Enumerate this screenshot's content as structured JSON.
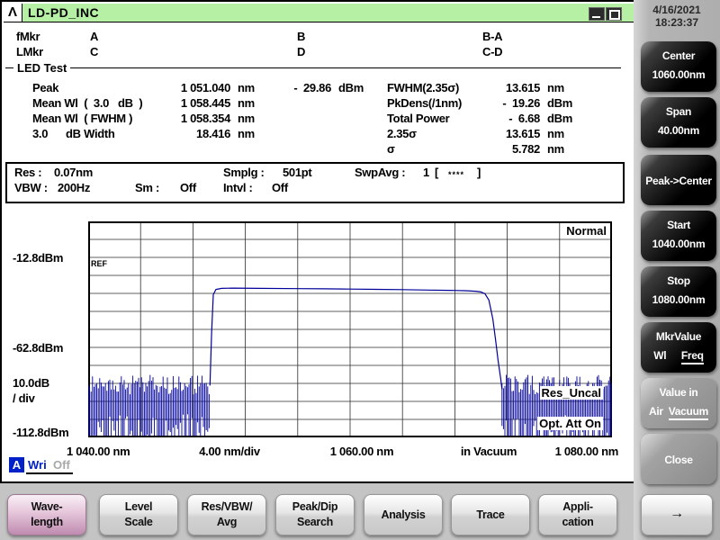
{
  "colors": {
    "titlebar_green": "#b5f0a5",
    "trace_blue": "#000099",
    "selected_key_pink": "#bf8bb0",
    "wri_blue": "#0020c8"
  },
  "window": {
    "title": "LD-PD_INC",
    "logo_glyph": "Λ",
    "date": "4/16/2021",
    "time": "18:23:37"
  },
  "markers": {
    "row1": {
      "label": "fMkr",
      "a": "A",
      "b": "B",
      "diff": "B-A"
    },
    "row2": {
      "label": "LMkr",
      "a": "C",
      "b": "D",
      "diff": "C-D"
    }
  },
  "led_test": {
    "title": "LED Test",
    "rows_left": [
      {
        "name": "Peak",
        "value": "1 051.040",
        "unit": "nm",
        "level": "-  29.86",
        "level_unit": "dBm"
      },
      {
        "name": "Mean Wl  (  3.0   dB  )",
        "value": "1 058.445",
        "unit": "nm"
      },
      {
        "name": "Mean Wl  ( FWHM )",
        "value": "1 058.354",
        "unit": "nm"
      },
      {
        "name": "3.0      dB Width",
        "value": "18.416",
        "unit": "nm"
      }
    ],
    "rows_right": [
      {
        "name": "FWHM(2.35σ)",
        "value": "13.615",
        "unit": "nm"
      },
      {
        "name": "PkDens(/1nm)",
        "value": "-  19.26",
        "unit": "dBm"
      },
      {
        "name": "Total Power",
        "value": "-  6.68",
        "unit": "dBm"
      },
      {
        "name": "2.35σ",
        "value": "13.615",
        "unit": "nm"
      },
      {
        "name": "σ",
        "value": "5.782",
        "unit": "nm"
      }
    ]
  },
  "sweep_settings": {
    "res_label": "Res :",
    "res": "0.07nm",
    "smplg_label": "Smplg :",
    "smplg": "501pt",
    "swpavg_label": "SwpAvg :",
    "swpavg_value": "1",
    "bracket_open": "[",
    "stars": "****",
    "bracket_close": "]",
    "vbw_label": "VBW :",
    "vbw": "200Hz",
    "sm_label": "Sm :",
    "sm": "Off",
    "intvl_label": "Intvl :",
    "intvl": "Off"
  },
  "chart_data": {
    "type": "line",
    "mode_label": "Normal",
    "ref_label": "REF",
    "status_labels": [
      "Res_Uncal",
      "Opt. Att On"
    ],
    "x_axis": {
      "start_nm": 1040.0,
      "stop_nm": 1080.0,
      "nm_per_div": 4.0,
      "divisions": 10,
      "medium": "in Vacuum",
      "tick_labels": [
        "1 040.00 nm",
        "4.00 nm/div",
        "1 060.00 nm",
        "in Vacuum",
        "1 080.00 nm"
      ]
    },
    "y_axis": {
      "ref_dbm": -12.8,
      "db_per_div": 10.0,
      "top_dbm": 7.2,
      "bottom_dbm": -112.8,
      "divisions": 12,
      "tick_labels": [
        "-12.8dBm",
        "-62.8dBm",
        "10.0dB",
        "/ div",
        "-112.8dBm"
      ]
    },
    "peak": {
      "wavelength_nm": 1051.04,
      "level_dbm": -29.86
    },
    "series": [
      {
        "name": "A",
        "color": "#000099",
        "pulse_points": [
          [
            1049.3,
            -84
          ],
          [
            1049.42,
            -55
          ],
          [
            1049.55,
            -33.5
          ],
          [
            1049.75,
            -30.6
          ],
          [
            1050.2,
            -30.0
          ],
          [
            1051.04,
            -29.86
          ],
          [
            1053.0,
            -30.0
          ],
          [
            1056.0,
            -30.15
          ],
          [
            1058.0,
            -30.25
          ],
          [
            1060.0,
            -30.4
          ],
          [
            1062.0,
            -30.55
          ],
          [
            1064.0,
            -30.7
          ],
          [
            1066.0,
            -30.95
          ],
          [
            1067.5,
            -31.1
          ],
          [
            1068.8,
            -31.3
          ],
          [
            1069.6,
            -31.6
          ],
          [
            1070.0,
            -32.0
          ],
          [
            1070.3,
            -33.0
          ],
          [
            1070.6,
            -36.5
          ],
          [
            1070.9,
            -47.0
          ],
          [
            1071.1,
            -58.0
          ],
          [
            1071.3,
            -70.0
          ],
          [
            1071.5,
            -80.0
          ],
          [
            1071.6,
            -86.0
          ]
        ],
        "noise_regions": [
          [
            1040.0,
            1049.3
          ],
          [
            1071.6,
            1080.0
          ]
        ],
        "noise_top_dbm": [
          -78,
          -89
        ],
        "noise_bottom_dbm": [
          -100,
          -126
        ],
        "noise_step_nm": 0.11,
        "seed": 11
      }
    ]
  },
  "trace_status": {
    "letter": "A",
    "mode": "Wri",
    "state": "Off"
  },
  "sidebar": {
    "buttons": [
      {
        "line1": "Center",
        "line2": "1060.00nm"
      },
      {
        "line1": "Span",
        "line2": "40.00nm"
      },
      {
        "line1": "Peak->Center",
        "line2": ""
      },
      {
        "line1": "Start",
        "line2": "1040.00nm"
      },
      {
        "line1": "Stop",
        "line2": "1080.00nm"
      }
    ],
    "mkr_value": {
      "title": "MkrValue",
      "opt1": "Wl",
      "opt2": "Freq"
    },
    "value_in": {
      "title": "Value in",
      "opt1": "Air",
      "opt2": "Vacuum"
    },
    "close_label": "Close",
    "more_arrow": "→"
  },
  "function_keys": [
    {
      "line1": "Wave-",
      "line2": "length"
    },
    {
      "line1": "Level",
      "line2": "Scale"
    },
    {
      "line1": "Res/VBW/",
      "line2": "Avg"
    },
    {
      "line1": "Peak/Dip",
      "line2": "Search"
    },
    {
      "line1": "Analysis",
      "line2": ""
    },
    {
      "line1": "Trace",
      "line2": ""
    },
    {
      "line1": "Appli-",
      "line2": "cation"
    }
  ]
}
